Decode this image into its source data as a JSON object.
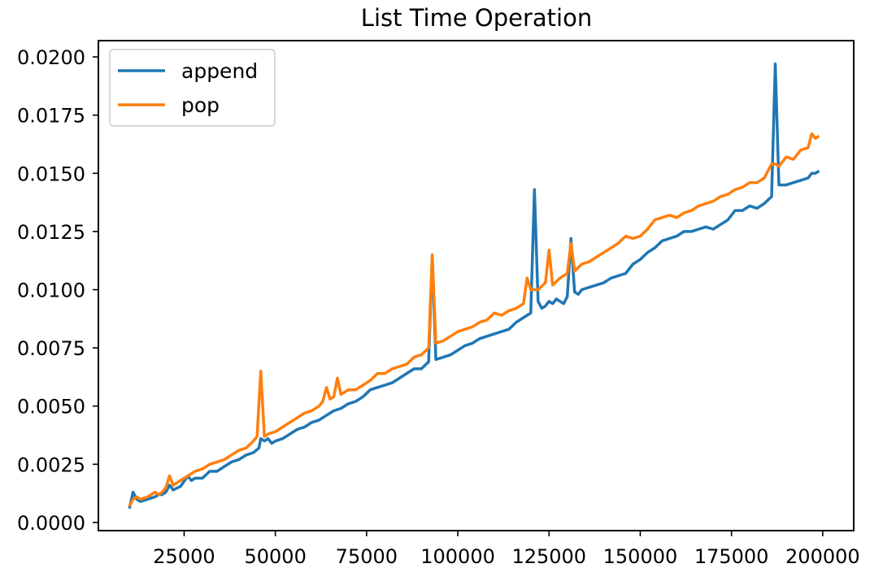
{
  "chart_data": {
    "type": "line",
    "title": "List Time Operation",
    "xlabel": "",
    "ylabel": "",
    "xlim": [
      1500,
      208500
    ],
    "ylim": [
      -0.00035,
      0.0207
    ],
    "xticks": [
      25000,
      50000,
      75000,
      100000,
      125000,
      150000,
      175000,
      200000
    ],
    "xtick_labels": [
      "25000",
      "50000",
      "75000",
      "100000",
      "125000",
      "150000",
      "175000",
      "200000"
    ],
    "yticks": [
      0.0,
      0.0025,
      0.005,
      0.0075,
      0.01,
      0.0125,
      0.015,
      0.0175,
      0.02
    ],
    "ytick_labels": [
      "0.0000",
      "0.0025",
      "0.0050",
      "0.0075",
      "0.0100",
      "0.0125",
      "0.0150",
      "0.0175",
      "0.0200"
    ],
    "grid": false,
    "legend_position": "top-left",
    "colors": {
      "append": "#1f77b4",
      "pop": "#ff7f0e"
    },
    "series": [
      {
        "name": "append",
        "points": [
          [
            10000,
            0.0006
          ],
          [
            11000,
            0.0013
          ],
          [
            12000,
            0.001
          ],
          [
            13000,
            0.0009
          ],
          [
            14000,
            0.00095
          ],
          [
            15000,
            0.001
          ],
          [
            16000,
            0.00105
          ],
          [
            17000,
            0.0011
          ],
          [
            18000,
            0.0012
          ],
          [
            19000,
            0.0012
          ],
          [
            20000,
            0.0013
          ],
          [
            21000,
            0.0016
          ],
          [
            22000,
            0.0014
          ],
          [
            24000,
            0.00155
          ],
          [
            26000,
            0.002
          ],
          [
            27000,
            0.0018
          ],
          [
            28000,
            0.0019
          ],
          [
            30000,
            0.0019
          ],
          [
            32000,
            0.0022
          ],
          [
            34000,
            0.0022
          ],
          [
            36000,
            0.0024
          ],
          [
            38000,
            0.0026
          ],
          [
            40000,
            0.0027
          ],
          [
            42000,
            0.0029
          ],
          [
            44000,
            0.003
          ],
          [
            45500,
            0.0032
          ],
          [
            46000,
            0.0036
          ],
          [
            47000,
            0.0035
          ],
          [
            48000,
            0.0036
          ],
          [
            49000,
            0.0034
          ],
          [
            50000,
            0.0035
          ],
          [
            52000,
            0.0036
          ],
          [
            54000,
            0.0038
          ],
          [
            56000,
            0.004
          ],
          [
            58000,
            0.0041
          ],
          [
            60000,
            0.0043
          ],
          [
            62000,
            0.0044
          ],
          [
            64000,
            0.0046
          ],
          [
            66000,
            0.0048
          ],
          [
            68000,
            0.0049
          ],
          [
            70000,
            0.0051
          ],
          [
            72000,
            0.0052
          ],
          [
            74000,
            0.0054
          ],
          [
            76000,
            0.0057
          ],
          [
            78000,
            0.0058
          ],
          [
            80000,
            0.0059
          ],
          [
            82000,
            0.006
          ],
          [
            84000,
            0.0062
          ],
          [
            86000,
            0.0064
          ],
          [
            88000,
            0.0066
          ],
          [
            90000,
            0.0066
          ],
          [
            92000,
            0.0069
          ],
          [
            93000,
            0.0114
          ],
          [
            94000,
            0.007
          ],
          [
            96000,
            0.0071
          ],
          [
            98000,
            0.0072
          ],
          [
            100000,
            0.0074
          ],
          [
            102000,
            0.0076
          ],
          [
            104000,
            0.0077
          ],
          [
            106000,
            0.0079
          ],
          [
            108000,
            0.008
          ],
          [
            110000,
            0.0081
          ],
          [
            112000,
            0.0082
          ],
          [
            114000,
            0.0083
          ],
          [
            116000,
            0.0086
          ],
          [
            118000,
            0.0088
          ],
          [
            120000,
            0.009
          ],
          [
            121000,
            0.0143
          ],
          [
            122000,
            0.0095
          ],
          [
            123000,
            0.0092
          ],
          [
            124000,
            0.0093
          ],
          [
            125000,
            0.0095
          ],
          [
            126000,
            0.0094
          ],
          [
            127000,
            0.0096
          ],
          [
            128000,
            0.0095
          ],
          [
            129000,
            0.0094
          ],
          [
            130000,
            0.0097
          ],
          [
            131000,
            0.0122
          ],
          [
            132000,
            0.0099
          ],
          [
            133000,
            0.0098
          ],
          [
            134000,
            0.01
          ],
          [
            136000,
            0.0101
          ],
          [
            138000,
            0.0102
          ],
          [
            140000,
            0.0103
          ],
          [
            142000,
            0.0105
          ],
          [
            144000,
            0.0106
          ],
          [
            146000,
            0.0107
          ],
          [
            148000,
            0.0111
          ],
          [
            150000,
            0.0113
          ],
          [
            152000,
            0.0116
          ],
          [
            154000,
            0.0118
          ],
          [
            156000,
            0.0121
          ],
          [
            158000,
            0.0122
          ],
          [
            160000,
            0.0123
          ],
          [
            162000,
            0.0125
          ],
          [
            164000,
            0.0125
          ],
          [
            166000,
            0.0126
          ],
          [
            168000,
            0.0127
          ],
          [
            170000,
            0.0126
          ],
          [
            172000,
            0.0128
          ],
          [
            174000,
            0.013
          ],
          [
            176000,
            0.0134
          ],
          [
            178000,
            0.0134
          ],
          [
            180000,
            0.0136
          ],
          [
            182000,
            0.0135
          ],
          [
            184000,
            0.0137
          ],
          [
            186000,
            0.014
          ],
          [
            187000,
            0.0197
          ],
          [
            188000,
            0.0145
          ],
          [
            190000,
            0.0145
          ],
          [
            192000,
            0.0146
          ],
          [
            194000,
            0.0147
          ],
          [
            196000,
            0.0148
          ],
          [
            197000,
            0.015
          ],
          [
            198000,
            0.015
          ],
          [
            199000,
            0.0151
          ]
        ]
      },
      {
        "name": "pop",
        "points": [
          [
            10000,
            0.0007
          ],
          [
            11000,
            0.001
          ],
          [
            12000,
            0.0011
          ],
          [
            13000,
            0.001
          ],
          [
            14000,
            0.00105
          ],
          [
            15000,
            0.0011
          ],
          [
            16000,
            0.0012
          ],
          [
            17000,
            0.0013
          ],
          [
            18000,
            0.0012
          ],
          [
            19000,
            0.0013
          ],
          [
            20000,
            0.0015
          ],
          [
            21000,
            0.002
          ],
          [
            22000,
            0.0016
          ],
          [
            24000,
            0.0018
          ],
          [
            26000,
            0.002
          ],
          [
            28000,
            0.0022
          ],
          [
            30000,
            0.0023
          ],
          [
            32000,
            0.0025
          ],
          [
            34000,
            0.0026
          ],
          [
            36000,
            0.0027
          ],
          [
            38000,
            0.0029
          ],
          [
            40000,
            0.0031
          ],
          [
            42000,
            0.0032
          ],
          [
            44000,
            0.0035
          ],
          [
            45000,
            0.0037
          ],
          [
            46000,
            0.0065
          ],
          [
            47000,
            0.0037
          ],
          [
            48000,
            0.0038
          ],
          [
            50000,
            0.0039
          ],
          [
            52000,
            0.0041
          ],
          [
            54000,
            0.0043
          ],
          [
            56000,
            0.0045
          ],
          [
            58000,
            0.0047
          ],
          [
            60000,
            0.0048
          ],
          [
            62000,
            0.005
          ],
          [
            63000,
            0.0052
          ],
          [
            64000,
            0.0058
          ],
          [
            65000,
            0.0053
          ],
          [
            66000,
            0.0054
          ],
          [
            67000,
            0.0062
          ],
          [
            68000,
            0.0055
          ],
          [
            70000,
            0.0057
          ],
          [
            72000,
            0.0057
          ],
          [
            74000,
            0.0059
          ],
          [
            76000,
            0.0061
          ],
          [
            78000,
            0.0064
          ],
          [
            80000,
            0.0064
          ],
          [
            82000,
            0.0066
          ],
          [
            84000,
            0.0067
          ],
          [
            86000,
            0.0068
          ],
          [
            88000,
            0.0071
          ],
          [
            90000,
            0.0072
          ],
          [
            92000,
            0.0075
          ],
          [
            93000,
            0.0115
          ],
          [
            94000,
            0.0077
          ],
          [
            96000,
            0.0078
          ],
          [
            98000,
            0.008
          ],
          [
            100000,
            0.0082
          ],
          [
            102000,
            0.0083
          ],
          [
            104000,
            0.0084
          ],
          [
            106000,
            0.0086
          ],
          [
            108000,
            0.0087
          ],
          [
            110000,
            0.009
          ],
          [
            112000,
            0.0089
          ],
          [
            114000,
            0.0091
          ],
          [
            116000,
            0.0092
          ],
          [
            118000,
            0.0094
          ],
          [
            119000,
            0.0105
          ],
          [
            120000,
            0.01
          ],
          [
            122000,
            0.01
          ],
          [
            124000,
            0.0103
          ],
          [
            125000,
            0.0117
          ],
          [
            126000,
            0.0102
          ],
          [
            128000,
            0.0105
          ],
          [
            130000,
            0.0107
          ],
          [
            131000,
            0.012
          ],
          [
            132000,
            0.0108
          ],
          [
            134000,
            0.0111
          ],
          [
            136000,
            0.0112
          ],
          [
            138000,
            0.0114
          ],
          [
            140000,
            0.0116
          ],
          [
            142000,
            0.0118
          ],
          [
            144000,
            0.012
          ],
          [
            146000,
            0.0123
          ],
          [
            148000,
            0.0122
          ],
          [
            150000,
            0.0123
          ],
          [
            152000,
            0.0126
          ],
          [
            154000,
            0.013
          ],
          [
            156000,
            0.0131
          ],
          [
            158000,
            0.0132
          ],
          [
            160000,
            0.0131
          ],
          [
            162000,
            0.0133
          ],
          [
            164000,
            0.0134
          ],
          [
            166000,
            0.0136
          ],
          [
            168000,
            0.0137
          ],
          [
            170000,
            0.0138
          ],
          [
            172000,
            0.014
          ],
          [
            174000,
            0.0141
          ],
          [
            176000,
            0.0143
          ],
          [
            178000,
            0.0144
          ],
          [
            180000,
            0.0146
          ],
          [
            182000,
            0.0146
          ],
          [
            184000,
            0.0148
          ],
          [
            186000,
            0.0154
          ],
          [
            187000,
            0.0154
          ],
          [
            188000,
            0.0153
          ],
          [
            190000,
            0.0157
          ],
          [
            192000,
            0.0156
          ],
          [
            194000,
            0.016
          ],
          [
            196000,
            0.0161
          ],
          [
            197000,
            0.0167
          ],
          [
            198000,
            0.0165
          ],
          [
            199000,
            0.0166
          ]
        ]
      }
    ]
  }
}
